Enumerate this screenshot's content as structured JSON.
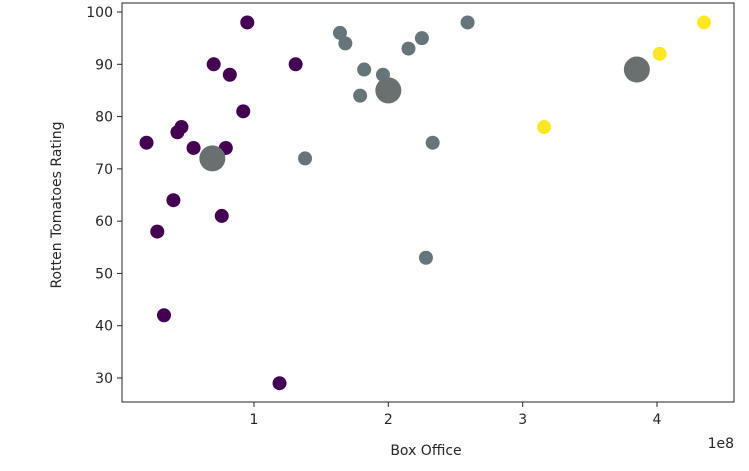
{
  "chart_data": {
    "type": "scatter",
    "xlabel": "Box Office",
    "ylabel": "Rotten Tomatoes Rating",
    "x_offset_label": "1e8",
    "xlim": [
      -0.1,
      4.35
    ],
    "ylim": [
      25.5,
      101.5
    ],
    "x_ticks": [
      1,
      2,
      3,
      4
    ],
    "x_tick_labels": [
      "1",
      "2",
      "3",
      "4"
    ],
    "y_ticks": [
      30,
      40,
      50,
      60,
      70,
      80,
      90,
      100
    ],
    "y_tick_labels": [
      "30",
      "40",
      "50",
      "60",
      "70",
      "80",
      "90",
      "100"
    ],
    "grid": false,
    "colors": {
      "purple": "#440154",
      "gray": "#65757a",
      "yellow": "#fde725",
      "dark_gray": "#6a6f6f"
    },
    "series": [
      {
        "color": "#440154",
        "points": [
          {
            "x": 0.2,
            "y": 75
          },
          {
            "x": 0.28,
            "y": 58
          },
          {
            "x": 0.33,
            "y": 42
          },
          {
            "x": 0.4,
            "y": 64
          },
          {
            "x": 0.43,
            "y": 77
          },
          {
            "x": 0.46,
            "y": 78
          },
          {
            "x": 0.55,
            "y": 74
          },
          {
            "x": 0.7,
            "y": 90
          },
          {
            "x": 0.76,
            "y": 61
          },
          {
            "x": 0.79,
            "y": 74
          },
          {
            "x": 0.82,
            "y": 88
          },
          {
            "x": 0.92,
            "y": 81
          },
          {
            "x": 0.95,
            "y": 98
          },
          {
            "x": 1.19,
            "y": 29
          },
          {
            "x": 1.31,
            "y": 90
          }
        ]
      },
      {
        "color": "#65757a",
        "points": [
          {
            "x": 1.38,
            "y": 72
          },
          {
            "x": 1.64,
            "y": 96
          },
          {
            "x": 1.68,
            "y": 94
          },
          {
            "x": 1.79,
            "y": 84
          },
          {
            "x": 1.82,
            "y": 89
          },
          {
            "x": 1.96,
            "y": 88
          },
          {
            "x": 2.15,
            "y": 93
          },
          {
            "x": 2.25,
            "y": 95
          },
          {
            "x": 2.28,
            "y": 53
          },
          {
            "x": 2.33,
            "y": 75
          },
          {
            "x": 2.59,
            "y": 98
          }
        ]
      },
      {
        "color": "#fde725",
        "points": [
          {
            "x": 3.16,
            "y": 78
          },
          {
            "x": 4.02,
            "y": 92
          },
          {
            "x": 4.35,
            "y": 98
          }
        ]
      },
      {
        "color": "#6a6f6f",
        "size": "large",
        "points": [
          {
            "x": 0.69,
            "y": 72
          },
          {
            "x": 2.0,
            "y": 85
          },
          {
            "x": 3.85,
            "y": 89
          }
        ]
      }
    ]
  }
}
